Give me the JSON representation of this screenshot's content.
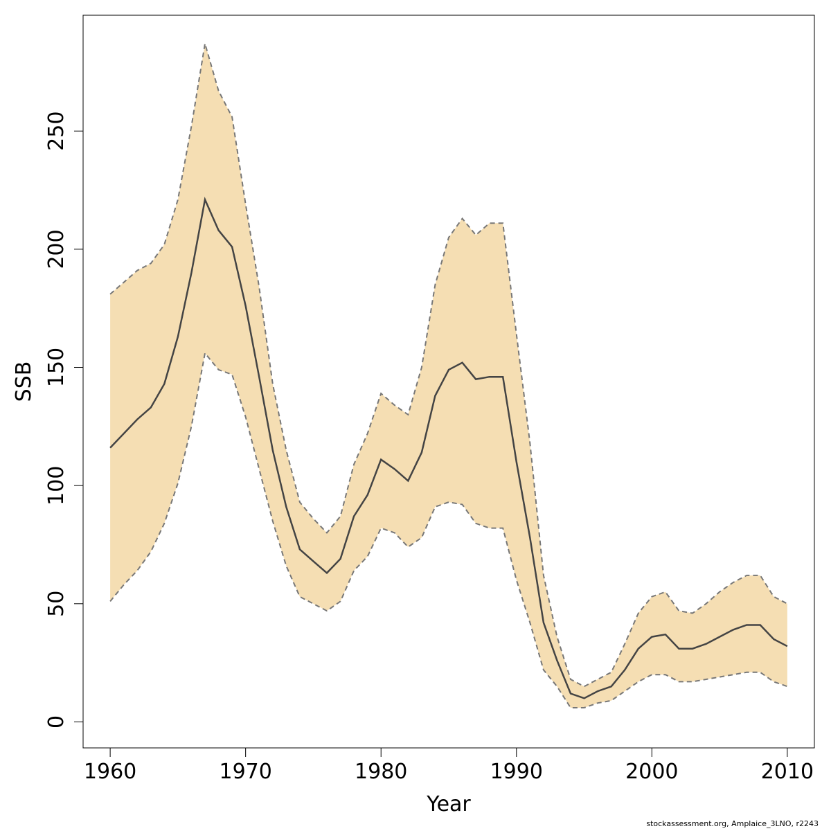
{
  "chart_data": {
    "type": "line",
    "xlabel": "Year",
    "ylabel": "SSB",
    "xlim": [
      1958,
      2012
    ],
    "ylim": [
      -11,
      299
    ],
    "x_ticks": [
      1960,
      1970,
      1980,
      1990,
      2000,
      2010
    ],
    "y_ticks": [
      0,
      50,
      100,
      150,
      200,
      250
    ],
    "x_tick_labels": [
      "1960",
      "1970",
      "1980",
      "1990",
      "2000",
      "2010"
    ],
    "y_tick_labels": [
      "0",
      "50",
      "100",
      "150",
      "200",
      "250"
    ],
    "band_color": "#F5DEB3",
    "line_color": "#444444",
    "bound_color": "#777777",
    "x": [
      1960,
      1961,
      1962,
      1963,
      1964,
      1965,
      1966,
      1967,
      1968,
      1969,
      1970,
      1971,
      1972,
      1973,
      1974,
      1975,
      1976,
      1977,
      1978,
      1979,
      1980,
      1981,
      1982,
      1983,
      1984,
      1985,
      1986,
      1987,
      1988,
      1989,
      1990,
      1991,
      1992,
      1993,
      1994,
      1995,
      1996,
      1997,
      1998,
      1999,
      2000,
      2001,
      2002,
      2003,
      2004,
      2005,
      2006,
      2007,
      2008,
      2009,
      2010
    ],
    "series": [
      {
        "role": "estimate",
        "values": [
          116,
          122,
          128,
          133,
          143,
          163,
          190,
          221,
          208,
          201,
          176,
          146,
          115,
          91,
          73,
          68,
          63,
          69,
          87,
          96,
          111,
          107,
          102,
          114,
          138,
          149,
          152,
          145,
          146,
          146,
          110,
          78,
          42,
          26,
          12,
          10,
          13,
          15,
          22,
          31,
          36,
          37,
          31,
          31,
          33,
          36,
          39,
          41,
          41,
          35,
          32
        ]
      },
      {
        "role": "upper",
        "values": [
          181,
          186,
          191,
          194,
          202,
          221,
          252,
          287,
          267,
          256,
          219,
          184,
          143,
          115,
          93,
          86,
          80,
          87,
          109,
          122,
          139,
          134,
          130,
          150,
          185,
          205,
          213,
          206,
          211,
          211,
          164,
          118,
          62,
          36,
          18,
          15,
          18,
          21,
          33,
          46,
          53,
          55,
          47,
          46,
          50,
          55,
          59,
          62,
          62,
          53,
          50
        ]
      },
      {
        "role": "lower",
        "values": [
          51,
          58,
          64,
          72,
          84,
          101,
          125,
          156,
          149,
          147,
          129,
          107,
          85,
          66,
          53,
          50,
          47,
          51,
          64,
          70,
          82,
          80,
          74,
          78,
          91,
          93,
          92,
          84,
          82,
          82,
          60,
          42,
          22,
          15,
          6,
          6,
          8,
          9,
          13,
          17,
          20,
          20,
          17,
          17,
          18,
          19,
          20,
          21,
          21,
          17,
          15
        ]
      }
    ]
  },
  "footer": {
    "text": "stockassessment.org, Amplaice_3LNO, r2243"
  }
}
